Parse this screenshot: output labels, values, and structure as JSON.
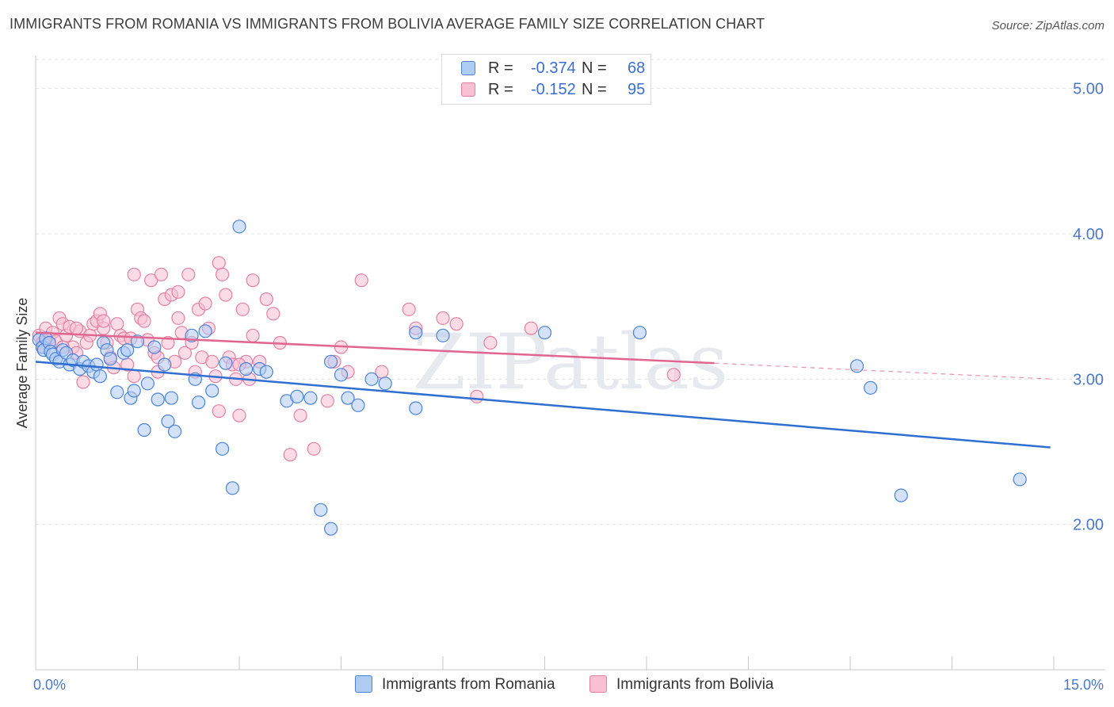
{
  "chart_data": {
    "type": "scatter",
    "title": "IMMIGRANTS FROM ROMANIA VS IMMIGRANTS FROM BOLIVIA AVERAGE FAMILY SIZE CORRELATION CHART",
    "source_label": "Source:",
    "source_name": "ZipAtlas.com",
    "xlabel": "",
    "ylabel": "Average Family Size",
    "xlim": [
      0,
      15
    ],
    "ylim": [
      1.0,
      5.2
    ],
    "x_tick_labels": [
      "0.0%",
      "15.0%"
    ],
    "y_ticks": [
      {
        "value": 2.0,
        "label": "2.00"
      },
      {
        "value": 3.0,
        "label": "3.00"
      },
      {
        "value": 4.0,
        "label": "4.00"
      },
      {
        "value": 5.0,
        "label": "5.00"
      }
    ],
    "watermark": "ZIPatlas",
    "colors": {
      "romania_fill": "#aecbf2",
      "romania_stroke": "#4a82d8",
      "romania_line": "#2f6fd1",
      "bolivia_fill": "#f8c0d2",
      "bolivia_stroke": "#e57fa2",
      "bolivia_line": "#e0668f",
      "tick_label": "#4a78c9",
      "value_text": "#3a6ed0"
    },
    "legend": [
      {
        "r_label": "R =",
        "r_value": "-0.374",
        "n_label": "N =",
        "n_value": "68"
      },
      {
        "r_label": "R =",
        "r_value": "-0.152",
        "n_label": "N =",
        "n_value": "95"
      }
    ],
    "series": [
      {
        "name": "Immigrants from Romania",
        "trend": {
          "x_start": 0.0,
          "y_start": 3.12,
          "x_end": 14.95,
          "y_end": 2.53
        },
        "points": [
          [
            0.05,
            3.27
          ],
          [
            0.1,
            3.22
          ],
          [
            0.12,
            3.2
          ],
          [
            0.15,
            3.28
          ],
          [
            0.2,
            3.25
          ],
          [
            0.22,
            3.19
          ],
          [
            0.25,
            3.17
          ],
          [
            0.3,
            3.14
          ],
          [
            0.35,
            3.12
          ],
          [
            0.4,
            3.2
          ],
          [
            0.45,
            3.18
          ],
          [
            0.5,
            3.1
          ],
          [
            0.55,
            3.13
          ],
          [
            0.65,
            3.07
          ],
          [
            0.7,
            3.12
          ],
          [
            0.78,
            3.09
          ],
          [
            0.85,
            3.05
          ],
          [
            0.9,
            3.1
          ],
          [
            0.95,
            3.02
          ],
          [
            1.0,
            3.25
          ],
          [
            1.05,
            3.2
          ],
          [
            1.1,
            3.14
          ],
          [
            1.2,
            2.91
          ],
          [
            1.3,
            3.18
          ],
          [
            1.35,
            3.2
          ],
          [
            1.4,
            2.87
          ],
          [
            1.45,
            2.92
          ],
          [
            1.5,
            3.26
          ],
          [
            1.6,
            2.65
          ],
          [
            1.65,
            2.97
          ],
          [
            1.75,
            3.22
          ],
          [
            1.8,
            2.86
          ],
          [
            1.9,
            3.1
          ],
          [
            1.95,
            2.71
          ],
          [
            2.0,
            2.87
          ],
          [
            2.05,
            2.64
          ],
          [
            2.3,
            3.3
          ],
          [
            2.35,
            3.0
          ],
          [
            2.4,
            2.84
          ],
          [
            2.5,
            3.33
          ],
          [
            2.6,
            2.92
          ],
          [
            2.8,
            3.11
          ],
          [
            2.9,
            2.25
          ],
          [
            3.0,
            4.05
          ],
          [
            3.1,
            3.07
          ],
          [
            3.3,
            3.07
          ],
          [
            3.4,
            3.05
          ],
          [
            3.7,
            2.85
          ],
          [
            3.85,
            2.88
          ],
          [
            4.05,
            2.87
          ],
          [
            4.2,
            2.1
          ],
          [
            4.35,
            3.12
          ],
          [
            4.5,
            3.03
          ],
          [
            4.6,
            2.87
          ],
          [
            4.75,
            2.82
          ],
          [
            4.95,
            3.0
          ],
          [
            5.15,
            2.97
          ],
          [
            5.6,
            3.32
          ],
          [
            5.6,
            2.8
          ],
          [
            6.0,
            3.3
          ],
          [
            7.5,
            3.32
          ],
          [
            8.9,
            3.32
          ],
          [
            12.1,
            3.09
          ],
          [
            12.3,
            2.94
          ],
          [
            12.75,
            2.2
          ],
          [
            14.5,
            2.31
          ],
          [
            4.35,
            1.97
          ],
          [
            2.75,
            2.52
          ]
        ]
      },
      {
        "name": "Immigrants from Bolivia",
        "trend": {
          "x_start": 0.0,
          "y_start": 3.32,
          "x_end": 10.0,
          "y_end": 3.11,
          "dash_x_end": 15.0,
          "dash_y_end": 3.0
        },
        "points": [
          [
            0.05,
            3.3
          ],
          [
            0.1,
            3.25
          ],
          [
            0.12,
            3.22
          ],
          [
            0.15,
            3.35
          ],
          [
            0.2,
            3.28
          ],
          [
            0.25,
            3.32
          ],
          [
            0.3,
            3.26
          ],
          [
            0.35,
            3.42
          ],
          [
            0.4,
            3.38
          ],
          [
            0.45,
            3.3
          ],
          [
            0.5,
            3.36
          ],
          [
            0.55,
            3.22
          ],
          [
            0.6,
            3.18
          ],
          [
            0.65,
            3.33
          ],
          [
            0.7,
            2.98
          ],
          [
            0.75,
            3.25
          ],
          [
            0.8,
            3.3
          ],
          [
            0.85,
            3.38
          ],
          [
            0.9,
            3.4
          ],
          [
            0.95,
            3.45
          ],
          [
            1.0,
            3.35
          ],
          [
            1.05,
            3.25
          ],
          [
            1.1,
            3.15
          ],
          [
            1.15,
            3.08
          ],
          [
            1.2,
            3.38
          ],
          [
            1.25,
            3.3
          ],
          [
            1.3,
            3.28
          ],
          [
            1.35,
            3.1
          ],
          [
            1.4,
            3.28
          ],
          [
            1.45,
            3.02
          ],
          [
            1.5,
            3.48
          ],
          [
            1.55,
            3.42
          ],
          [
            1.6,
            3.4
          ],
          [
            1.65,
            3.27
          ],
          [
            1.7,
            3.68
          ],
          [
            1.75,
            3.18
          ],
          [
            1.8,
            3.15
          ],
          [
            1.85,
            3.72
          ],
          [
            1.9,
            3.55
          ],
          [
            1.95,
            3.25
          ],
          [
            2.0,
            3.58
          ],
          [
            2.05,
            3.12
          ],
          [
            2.1,
            3.42
          ],
          [
            2.15,
            3.32
          ],
          [
            2.2,
            3.18
          ],
          [
            2.25,
            3.72
          ],
          [
            2.3,
            3.25
          ],
          [
            2.35,
            3.05
          ],
          [
            2.4,
            3.48
          ],
          [
            2.45,
            3.15
          ],
          [
            2.5,
            3.52
          ],
          [
            2.55,
            3.35
          ],
          [
            2.6,
            3.12
          ],
          [
            2.65,
            3.02
          ],
          [
            2.7,
            3.8
          ],
          [
            2.75,
            3.72
          ],
          [
            2.8,
            3.58
          ],
          [
            2.85,
            3.15
          ],
          [
            2.9,
            3.1
          ],
          [
            2.95,
            3.0
          ],
          [
            3.0,
            2.75
          ],
          [
            3.05,
            3.48
          ],
          [
            3.1,
            3.12
          ],
          [
            3.15,
            3.0
          ],
          [
            3.2,
            3.68
          ],
          [
            3.3,
            3.12
          ],
          [
            3.4,
            3.55
          ],
          [
            3.5,
            3.45
          ],
          [
            3.6,
            3.25
          ],
          [
            3.75,
            2.48
          ],
          [
            3.9,
            2.75
          ],
          [
            4.1,
            2.52
          ],
          [
            4.3,
            2.85
          ],
          [
            4.4,
            3.12
          ],
          [
            4.6,
            3.05
          ],
          [
            4.8,
            3.68
          ],
          [
            5.1,
            3.05
          ],
          [
            5.5,
            3.48
          ],
          [
            5.6,
            3.35
          ],
          [
            6.0,
            3.42
          ],
          [
            6.2,
            3.38
          ],
          [
            6.5,
            2.88
          ],
          [
            6.7,
            3.25
          ],
          [
            7.3,
            3.35
          ],
          [
            9.4,
            3.03
          ],
          [
            1.45,
            3.72
          ],
          [
            2.1,
            3.6
          ],
          [
            0.4,
            3.22
          ],
          [
            0.6,
            3.35
          ],
          [
            1.0,
            3.4
          ],
          [
            3.0,
            3.1
          ],
          [
            2.7,
            2.78
          ],
          [
            1.8,
            3.05
          ],
          [
            4.5,
            3.22
          ],
          [
            3.2,
            3.3
          ]
        ]
      }
    ]
  }
}
